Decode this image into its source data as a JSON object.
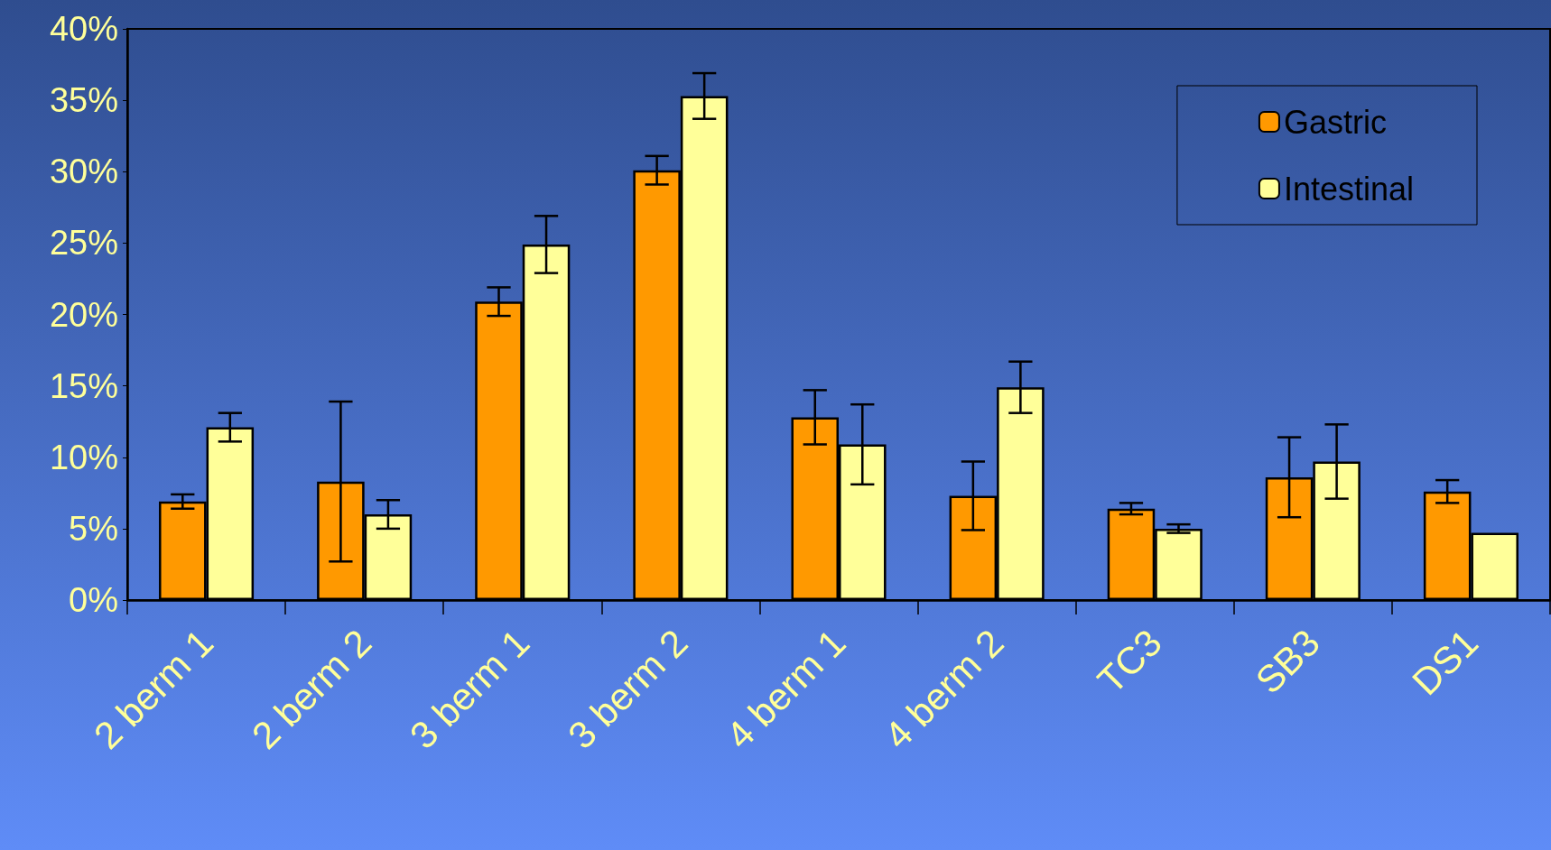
{
  "chart_data": {
    "type": "bar",
    "categories": [
      "2 berm 1",
      "2 berm 2",
      "3 berm 1",
      "3 berm 2",
      "4 berm 1",
      "4 berm 2",
      "TC3",
      "SB3",
      "DS1"
    ],
    "series": [
      {
        "name": "Gastric",
        "color": "#ff9900",
        "values": [
          6.9,
          8.3,
          20.9,
          30.1,
          12.8,
          7.3,
          6.4,
          8.6,
          7.6
        ],
        "errors": [
          0.5,
          5.6,
          1.0,
          1.0,
          1.9,
          2.4,
          0.4,
          2.8,
          0.8
        ]
      },
      {
        "name": "Intestinal",
        "color": "#ffff99",
        "values": [
          12.1,
          6.0,
          24.9,
          35.3,
          10.9,
          14.9,
          5.0,
          9.7,
          4.7
        ],
        "errors": [
          1.0,
          1.0,
          2.0,
          1.6,
          2.8,
          1.8,
          0.3,
          2.6,
          null
        ]
      }
    ],
    "ylim": [
      0,
      40
    ],
    "yticks": [
      {
        "value": 0,
        "label": "0%"
      },
      {
        "value": 5,
        "label": "5%"
      },
      {
        "value": 10,
        "label": "10%"
      },
      {
        "value": 15,
        "label": "15%"
      },
      {
        "value": 20,
        "label": "20%"
      },
      {
        "value": 25,
        "label": "25%"
      },
      {
        "value": 30,
        "label": "30%"
      },
      {
        "value": 35,
        "label": "35%"
      },
      {
        "value": 40,
        "label": "40%"
      }
    ],
    "grid": false,
    "legend": "top right"
  }
}
